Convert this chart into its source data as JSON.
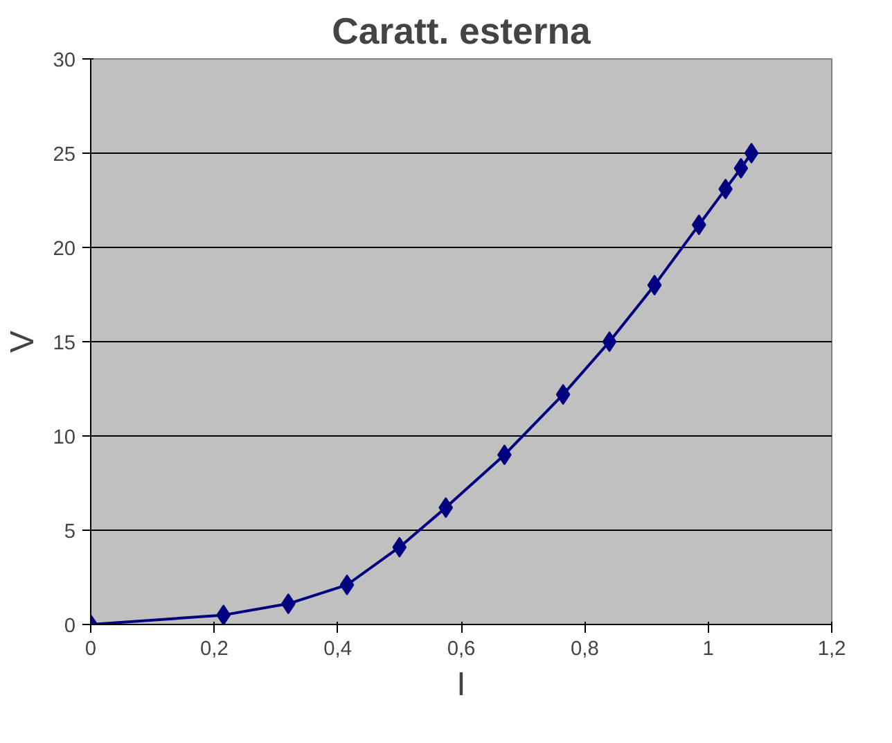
{
  "chart_data": {
    "type": "line",
    "title": "Caratt. esterna",
    "xlabel": "I",
    "ylabel": "V",
    "x": [
      0,
      0.215,
      0.32,
      0.415,
      0.5,
      0.575,
      0.67,
      0.765,
      0.84,
      0.913,
      0.985,
      1.028,
      1.053,
      1.07
    ],
    "series": [
      {
        "color": "#000080",
        "values": [
          0,
          0.5,
          1.1,
          2.1,
          4.1,
          6.2,
          9.0,
          12.2,
          15.0,
          18.0,
          21.2,
          23.1,
          24.2,
          25.0
        ]
      }
    ],
    "xlim": [
      0,
      1.2
    ],
    "xticks": [
      0,
      {
        "value": 0.2,
        "label": "0,2"
      },
      {
        "value": 0.4,
        "label": "0,4"
      },
      {
        "value": 0.6,
        "label": "0,6"
      },
      {
        "value": 0.8,
        "label": "0,8"
      },
      1,
      {
        "value": 1.2,
        "label": "1,2"
      }
    ],
    "ylim": [
      0,
      30
    ],
    "yticks": [
      0,
      5,
      10,
      15,
      20,
      25,
      30
    ],
    "grid": "y",
    "marker": "diamond",
    "line_style": "solid"
  }
}
